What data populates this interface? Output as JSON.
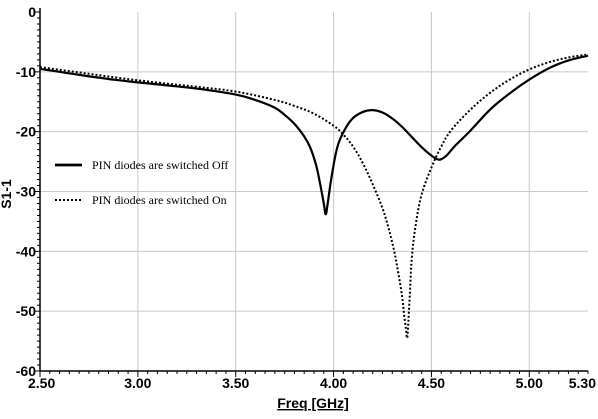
{
  "chart_data": {
    "type": "line",
    "title": "",
    "xlabel": "Freq [GHz]",
    "ylabel": "S1-1",
    "xlim": [
      2.5,
      5.3
    ],
    "ylim": [
      -60,
      0
    ],
    "x_ticks": [
      2.5,
      3.0,
      3.5,
      4.0,
      4.5,
      5.0,
      5.3
    ],
    "x_tick_labels": [
      "2.50",
      "3.00",
      "3.50",
      "4.00",
      "4.50",
      "5.00",
      "5.30"
    ],
    "y_ticks": [
      0,
      -10,
      -20,
      -30,
      -40,
      -50,
      -60
    ],
    "y_tick_labels": [
      "0",
      "-10",
      "-20",
      "-30",
      "-40",
      "-50",
      "-60"
    ],
    "grid": true,
    "legend_position": "middle-left",
    "series": [
      {
        "name": "PIN diodes are switched Off",
        "style": "solid",
        "color": "#000000",
        "x": [
          2.5,
          2.7,
          2.9,
          3.1,
          3.3,
          3.5,
          3.6,
          3.7,
          3.75,
          3.8,
          3.85,
          3.88,
          3.91,
          3.93,
          3.95,
          3.96,
          3.97,
          3.99,
          4.02,
          4.06,
          4.1,
          4.15,
          4.2,
          4.25,
          4.3,
          4.35,
          4.4,
          4.45,
          4.5,
          4.53,
          4.55,
          4.58,
          4.62,
          4.7,
          4.8,
          4.9,
          5.0,
          5.1,
          5.2,
          5.3
        ],
        "y": [
          -9.5,
          -10.5,
          -11.4,
          -12.1,
          -12.8,
          -13.8,
          -14.7,
          -16.0,
          -17.2,
          -18.7,
          -20.8,
          -22.6,
          -25.5,
          -28.5,
          -32.0,
          -33.8,
          -32.0,
          -27.5,
          -22.5,
          -19.5,
          -17.7,
          -16.7,
          -16.4,
          -16.8,
          -17.8,
          -19.2,
          -20.9,
          -22.6,
          -24.0,
          -24.6,
          -24.6,
          -23.9,
          -22.4,
          -19.8,
          -16.3,
          -13.6,
          -11.3,
          -9.4,
          -8.1,
          -7.3
        ]
      },
      {
        "name": "PIN diodes are switched On",
        "style": "dotted",
        "color": "#000000",
        "x": [
          2.5,
          2.7,
          2.9,
          3.1,
          3.3,
          3.5,
          3.7,
          3.8,
          3.9,
          4.0,
          4.05,
          4.1,
          4.15,
          4.2,
          4.25,
          4.28,
          4.31,
          4.33,
          4.35,
          4.36,
          4.37,
          4.375,
          4.38,
          4.39,
          4.4,
          4.42,
          4.45,
          4.5,
          4.55,
          4.6,
          4.7,
          4.8,
          4.9,
          5.0,
          5.1,
          5.2,
          5.3
        ],
        "y": [
          -9.2,
          -10.1,
          -11.0,
          -11.8,
          -12.5,
          -13.3,
          -14.7,
          -15.7,
          -17.0,
          -19.0,
          -20.5,
          -22.5,
          -25.3,
          -28.8,
          -32.8,
          -36.0,
          -40.0,
          -43.5,
          -47.5,
          -50.5,
          -53.0,
          -54.5,
          -53.0,
          -47.0,
          -41.0,
          -35.5,
          -30.5,
          -26.0,
          -22.5,
          -19.8,
          -16.3,
          -13.5,
          -11.3,
          -9.6,
          -8.4,
          -7.6,
          -7.1
        ]
      }
    ]
  }
}
